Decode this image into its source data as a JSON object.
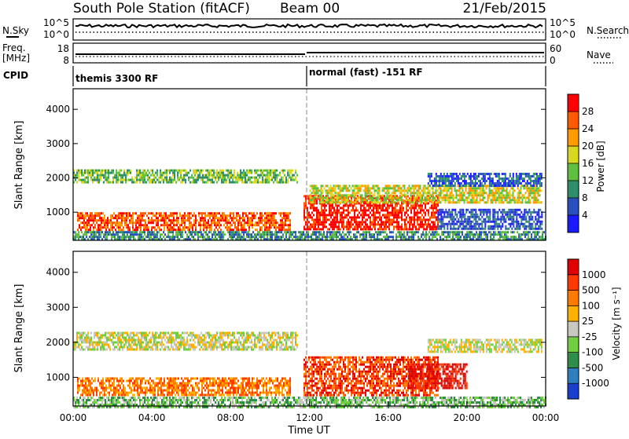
{
  "header": {
    "station_title": "South Pole Station (fitACF)",
    "beam": "Beam 00",
    "date": "21/Feb/2015"
  },
  "status_panels": {
    "noise": {
      "left_label": "N.Sky",
      "right_label": "N.Search",
      "left_ticks": [
        "10^5",
        "10^0"
      ],
      "right_ticks": [
        "10^5",
        "10^0"
      ]
    },
    "frequency": {
      "left_label_line1": "Freq.",
      "left_label_line2": "[MHz]",
      "left_ticks": [
        "18",
        "8"
      ],
      "right_label": "Nave",
      "right_ticks": [
        "60",
        "0"
      ]
    },
    "cpid": {
      "label": "CPID",
      "segments": [
        {
          "start_hour": 0,
          "name": "themis 3300 RF"
        },
        {
          "start_hour": 12,
          "name": "normal (fast) -151 RF"
        }
      ]
    }
  },
  "chart_data": [
    {
      "type": "heatmap",
      "name": "power",
      "ylabel": "Slant Range [km]",
      "ylim": [
        180,
        4600
      ],
      "yticks": [
        1000,
        2000,
        3000,
        4000
      ],
      "xlim": [
        0,
        24
      ],
      "colorbar": {
        "label": "Power [dB]",
        "range": [
          0,
          32
        ],
        "ticks": [
          4,
          8,
          12,
          16,
          20,
          24,
          28
        ],
        "colors": [
          "#1a1aff",
          "#2a4fbf",
          "#2f8f6a",
          "#5fbf3f",
          "#d8d820",
          "#ff9a00",
          "#ff5a00",
          "#ff0000"
        ]
      },
      "echo_bands": [
        {
          "t0": 0.0,
          "t1": 11.4,
          "r0": 1850,
          "r1": 2250,
          "level": 3
        },
        {
          "t0": 0.2,
          "t1": 11.0,
          "r0": 500,
          "r1": 1000,
          "level": 6
        },
        {
          "t0": 11.7,
          "t1": 18.5,
          "r0": 500,
          "r1": 1500,
          "level": 7
        },
        {
          "t0": 12.0,
          "t1": 23.8,
          "r0": 1300,
          "r1": 1800,
          "level": 4
        },
        {
          "t0": 18.0,
          "t1": 23.8,
          "r0": 1750,
          "r1": 2150,
          "level": 1
        },
        {
          "t0": 18.5,
          "t1": 23.8,
          "r0": 500,
          "r1": 1100,
          "level": 1
        },
        {
          "t0": 0.0,
          "t1": 24.0,
          "r0": 180,
          "r1": 450,
          "level": 2
        }
      ]
    },
    {
      "type": "heatmap",
      "name": "velocity",
      "ylabel": "Slant Range [km]",
      "ylim": [
        180,
        4600
      ],
      "yticks": [
        1000,
        2000,
        3000,
        4000
      ],
      "xlim": [
        0,
        24
      ],
      "xlabel": "Time UT",
      "xticks": [
        "00:00",
        "04:00",
        "08:00",
        "12:00",
        "16:00",
        "20:00",
        "00:00"
      ],
      "colorbar": {
        "label": "Velocity [m s⁻¹]",
        "ticks": [
          "1000",
          "500",
          "100",
          "25",
          "-25",
          "-100",
          "-500",
          "-1000"
        ],
        "colors": [
          "#1a3fcf",
          "#2f7fbf",
          "#2f8f4a",
          "#6fcf3f",
          "#c8c8c0",
          "#ffb000",
          "#ff7a00",
          "#ff3a00",
          "#e00000"
        ]
      },
      "echo_bands": [
        {
          "t0": 0.0,
          "t1": 11.4,
          "r0": 1800,
          "r1": 2300,
          "level": 4
        },
        {
          "t0": 0.2,
          "t1": 11.0,
          "r0": 500,
          "r1": 1000,
          "level": 6
        },
        {
          "t0": 11.7,
          "t1": 18.5,
          "r0": 500,
          "r1": 1600,
          "level": 7
        },
        {
          "t0": 17.0,
          "t1": 20.0,
          "r0": 700,
          "r1": 1400,
          "level": 8
        },
        {
          "t0": 18.0,
          "t1": 23.8,
          "r0": 1700,
          "r1": 2100,
          "level": 4
        },
        {
          "t0": 0.0,
          "t1": 24.0,
          "r0": 180,
          "r1": 450,
          "level": 3
        }
      ]
    }
  ]
}
